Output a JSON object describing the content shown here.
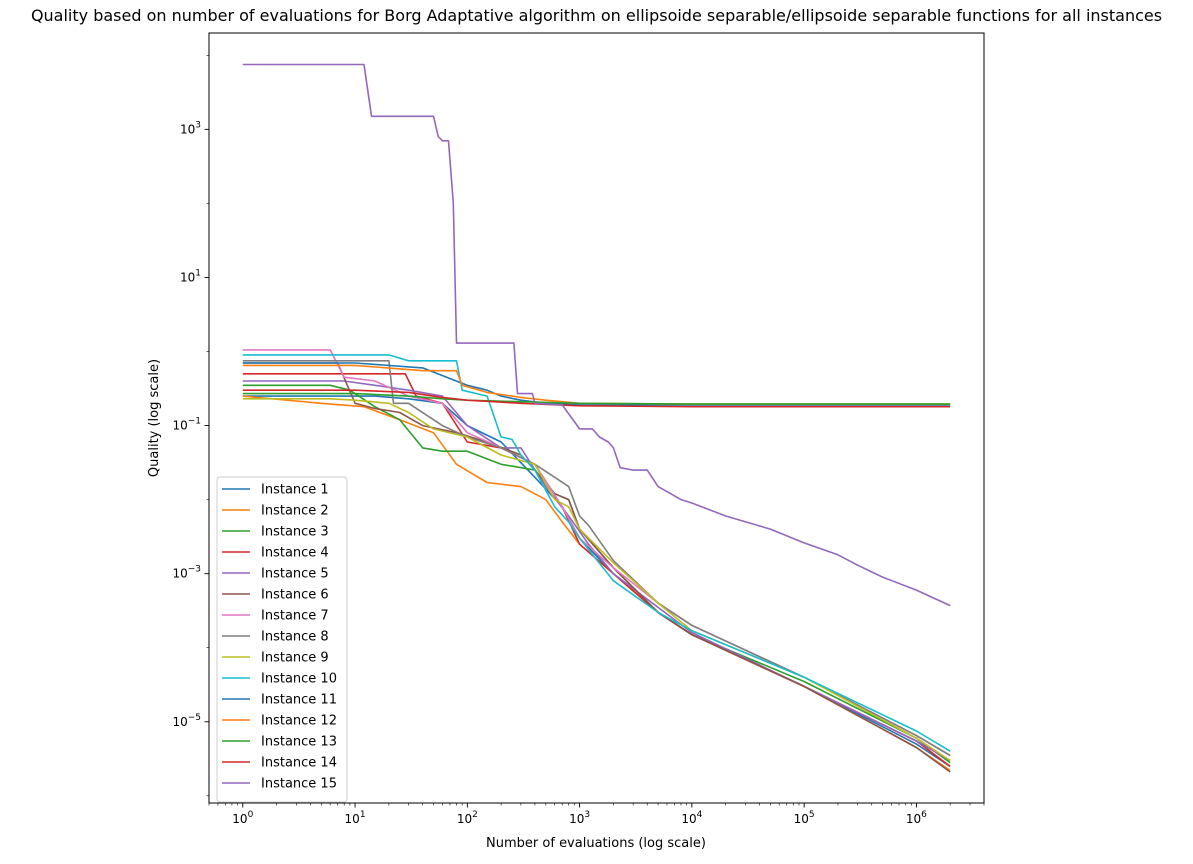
{
  "chart_data": {
    "type": "line",
    "title": "Quality based on number of evaluations for Borg Adaptative algorithm on ellipsoide separable/ellipsoide separable functions for all instances",
    "xlabel": "Number of evaluations (log scale)",
    "ylabel": "Quality (log scale)",
    "xscale": "log",
    "yscale": "log",
    "xlim": [
      0.5,
      4000000
    ],
    "ylim": [
      8e-07,
      20000
    ],
    "xticks": [
      {
        "value": 1,
        "base": "10",
        "exp": "0"
      },
      {
        "value": 10,
        "base": "10",
        "exp": "1"
      },
      {
        "value": 100,
        "base": "10",
        "exp": "2"
      },
      {
        "value": 1000,
        "base": "10",
        "exp": "3"
      },
      {
        "value": 10000,
        "base": "10",
        "exp": "4"
      },
      {
        "value": 100000,
        "base": "10",
        "exp": "5"
      },
      {
        "value": 1000000,
        "base": "10",
        "exp": "6"
      }
    ],
    "yticks": [
      {
        "value": 1e-05,
        "base": "10",
        "exp": "−5"
      },
      {
        "value": 0.001,
        "base": "10",
        "exp": "−3"
      },
      {
        "value": 0.1,
        "base": "10",
        "exp": "−1"
      },
      {
        "value": 10,
        "base": "10",
        "exp": "1"
      },
      {
        "value": 1000,
        "base": "10",
        "exp": "3"
      }
    ],
    "grid": false,
    "legend_position": "lower-left",
    "series": [
      {
        "name": "Instance 1",
        "color": "#1f77b4",
        "points": [
          [
            1,
            0.25
          ],
          [
            15,
            0.25
          ],
          [
            30,
            0.23
          ],
          [
            60,
            0.2
          ],
          [
            100,
            0.1
          ],
          [
            200,
            0.06
          ],
          [
            400,
            0.02
          ],
          [
            700,
            0.008
          ],
          [
            1000,
            0.003
          ],
          [
            2000,
            0.001
          ],
          [
            5000,
            0.0003
          ],
          [
            10000,
            0.00015
          ],
          [
            100000,
            3e-05
          ],
          [
            1000000,
            5e-06
          ],
          [
            2000000,
            2.5e-06
          ]
        ]
      },
      {
        "name": "Instance 2",
        "color": "#ff7f0e",
        "points": [
          [
            1,
            0.25
          ],
          [
            5,
            0.2
          ],
          [
            12,
            0.18
          ],
          [
            25,
            0.12
          ],
          [
            50,
            0.08
          ],
          [
            80,
            0.03
          ],
          [
            150,
            0.017
          ],
          [
            300,
            0.015
          ],
          [
            500,
            0.01
          ],
          [
            700,
            0.005
          ],
          [
            1000,
            0.0025
          ],
          [
            2000,
            0.001
          ],
          [
            5000,
            0.0003
          ],
          [
            10000,
            0.00015
          ],
          [
            100000,
            3e-05
          ],
          [
            1000000,
            4.5e-06
          ],
          [
            2000000,
            2.2e-06
          ]
        ]
      },
      {
        "name": "Instance 3",
        "color": "#2ca02c",
        "points": [
          [
            1,
            0.35
          ],
          [
            6,
            0.35
          ],
          [
            9,
            0.3
          ],
          [
            15,
            0.18
          ],
          [
            25,
            0.12
          ],
          [
            40,
            0.05
          ],
          [
            60,
            0.045
          ],
          [
            100,
            0.045
          ],
          [
            200,
            0.03
          ],
          [
            400,
            0.025
          ],
          [
            600,
            0.012
          ],
          [
            800,
            0.01
          ],
          [
            1000,
            0.004
          ],
          [
            2000,
            0.0012
          ],
          [
            5000,
            0.0003
          ],
          [
            10000,
            0.00015
          ],
          [
            100000,
            3.5e-05
          ],
          [
            1000000,
            6e-06
          ],
          [
            2000000,
            2.8e-06
          ]
        ]
      },
      {
        "name": "Instance 4",
        "color": "#d62728",
        "points": [
          [
            1,
            0.5
          ],
          [
            8,
            0.5
          ],
          [
            12,
            0.5
          ],
          [
            28,
            0.5
          ],
          [
            35,
            0.25
          ],
          [
            60,
            0.2
          ],
          [
            100,
            0.06
          ],
          [
            200,
            0.05
          ],
          [
            400,
            0.03
          ],
          [
            700,
            0.008
          ],
          [
            1000,
            0.0025
          ],
          [
            2000,
            0.001
          ],
          [
            5000,
            0.0003
          ],
          [
            10000,
            0.00015
          ],
          [
            100000,
            3e-05
          ],
          [
            1000000,
            5.5e-06
          ],
          [
            2000000,
            2.5e-06
          ]
        ]
      },
      {
        "name": "Instance 5",
        "color": "#9467bd",
        "points": [
          [
            1,
            0.4
          ],
          [
            8,
            0.4
          ],
          [
            15,
            0.35
          ],
          [
            30,
            0.3
          ],
          [
            60,
            0.25
          ],
          [
            100,
            0.1
          ],
          [
            200,
            0.05
          ],
          [
            300,
            0.05
          ],
          [
            500,
            0.015
          ],
          [
            800,
            0.006
          ],
          [
            1200,
            0.0025
          ],
          [
            2000,
            0.001
          ],
          [
            5000,
            0.00035
          ],
          [
            10000,
            0.00016
          ],
          [
            100000,
            3e-05
          ],
          [
            1000000,
            5.5e-06
          ],
          [
            2000000,
            3e-06
          ]
        ]
      },
      {
        "name": "Instance 6",
        "color": "#8c564b",
        "points": [
          [
            1,
            0.7
          ],
          [
            7,
            0.7
          ],
          [
            10,
            0.2
          ],
          [
            15,
            0.17
          ],
          [
            25,
            0.15
          ],
          [
            40,
            0.1
          ],
          [
            80,
            0.08
          ],
          [
            150,
            0.06
          ],
          [
            300,
            0.04
          ],
          [
            400,
            0.025
          ],
          [
            600,
            0.012
          ],
          [
            800,
            0.01
          ],
          [
            1000,
            0.004
          ],
          [
            2000,
            0.0012
          ],
          [
            5000,
            0.0003
          ],
          [
            10000,
            0.00015
          ],
          [
            100000,
            3e-05
          ],
          [
            1000000,
            4.5e-06
          ],
          [
            2000000,
            2.1e-06
          ]
        ]
      },
      {
        "name": "Instance 7",
        "color": "#e377c2",
        "points": [
          [
            1,
            1.05
          ],
          [
            6,
            1.05
          ],
          [
            8,
            0.45
          ],
          [
            15,
            0.4
          ],
          [
            30,
            0.25
          ],
          [
            60,
            0.2
          ],
          [
            100,
            0.08
          ],
          [
            200,
            0.05
          ],
          [
            400,
            0.03
          ],
          [
            700,
            0.008
          ],
          [
            1000,
            0.003
          ],
          [
            2000,
            0.0012
          ],
          [
            5000,
            0.0004
          ],
          [
            10000,
            0.0002
          ],
          [
            100000,
            4e-05
          ],
          [
            1000000,
            6.5e-06
          ],
          [
            2000000,
            3.5e-06
          ]
        ]
      },
      {
        "name": "Instance 8",
        "color": "#7f7f7f",
        "points": [
          [
            1,
            0.75
          ],
          [
            6,
            0.75
          ],
          [
            10,
            0.75
          ],
          [
            20,
            0.75
          ],
          [
            22,
            0.2
          ],
          [
            30,
            0.2
          ],
          [
            60,
            0.1
          ],
          [
            100,
            0.07
          ],
          [
            200,
            0.05
          ],
          [
            400,
            0.03
          ],
          [
            600,
            0.02
          ],
          [
            800,
            0.015
          ],
          [
            1000,
            0.006
          ],
          [
            1200,
            0.0045
          ],
          [
            2000,
            0.0015
          ],
          [
            5000,
            0.0004
          ],
          [
            10000,
            0.0002
          ],
          [
            100000,
            4e-05
          ],
          [
            1000000,
            6.5e-06
          ],
          [
            2000000,
            3.5e-06
          ]
        ]
      },
      {
        "name": "Instance 9",
        "color": "#bcbd22",
        "points": [
          [
            1,
            0.23
          ],
          [
            6,
            0.23
          ],
          [
            10,
            0.22
          ],
          [
            20,
            0.2
          ],
          [
            30,
            0.15
          ],
          [
            50,
            0.09
          ],
          [
            100,
            0.07
          ],
          [
            200,
            0.04
          ],
          [
            400,
            0.03
          ],
          [
            600,
            0.01
          ],
          [
            800,
            0.008
          ],
          [
            1000,
            0.004
          ],
          [
            2000,
            0.0014
          ],
          [
            5000,
            0.0004
          ],
          [
            10000,
            0.00017
          ],
          [
            100000,
            4e-05
          ],
          [
            1000000,
            6e-06
          ],
          [
            2000000,
            3e-06
          ]
        ]
      },
      {
        "name": "Instance 10",
        "color": "#17becf",
        "points": [
          [
            1,
            0.9
          ],
          [
            10,
            0.9
          ],
          [
            20,
            0.9
          ],
          [
            30,
            0.75
          ],
          [
            80,
            0.75
          ],
          [
            90,
            0.3
          ],
          [
            150,
            0.25
          ],
          [
            200,
            0.07
          ],
          [
            250,
            0.065
          ],
          [
            300,
            0.04
          ],
          [
            400,
            0.025
          ],
          [
            600,
            0.008
          ],
          [
            800,
            0.005
          ],
          [
            1000,
            0.003
          ],
          [
            2000,
            0.0008
          ],
          [
            5000,
            0.0003
          ],
          [
            10000,
            0.00017
          ],
          [
            100000,
            4e-05
          ],
          [
            1000000,
            7.5e-06
          ],
          [
            2000000,
            4e-06
          ]
        ]
      },
      {
        "name": "Instance 11",
        "color": "#1f77b4",
        "points": [
          [
            1,
            0.7
          ],
          [
            10,
            0.7
          ],
          [
            40,
            0.6
          ],
          [
            100,
            0.35
          ],
          [
            150,
            0.3
          ],
          [
            200,
            0.25
          ],
          [
            300,
            0.22
          ],
          [
            500,
            0.2
          ],
          [
            1000,
            0.19
          ],
          [
            10000,
            0.19
          ],
          [
            100000,
            0.19
          ],
          [
            2000000,
            0.19
          ]
        ]
      },
      {
        "name": "Instance 12",
        "color": "#ff7f0e",
        "points": [
          [
            1,
            0.65
          ],
          [
            10,
            0.65
          ],
          [
            40,
            0.55
          ],
          [
            80,
            0.55
          ],
          [
            90,
            0.35
          ],
          [
            150,
            0.28
          ],
          [
            300,
            0.24
          ],
          [
            500,
            0.22
          ],
          [
            1000,
            0.2
          ],
          [
            10000,
            0.195
          ],
          [
            100000,
            0.195
          ],
          [
            2000000,
            0.195
          ]
        ]
      },
      {
        "name": "Instance 13",
        "color": "#2ca02c",
        "points": [
          [
            1,
            0.27
          ],
          [
            10,
            0.27
          ],
          [
            30,
            0.25
          ],
          [
            60,
            0.23
          ],
          [
            100,
            0.22
          ],
          [
            300,
            0.21
          ],
          [
            1000,
            0.2
          ],
          [
            10000,
            0.195
          ],
          [
            100000,
            0.195
          ],
          [
            2000000,
            0.195
          ]
        ]
      },
      {
        "name": "Instance 14",
        "color": "#d62728",
        "points": [
          [
            1,
            0.3
          ],
          [
            10,
            0.3
          ],
          [
            30,
            0.28
          ],
          [
            60,
            0.24
          ],
          [
            100,
            0.22
          ],
          [
            300,
            0.2
          ],
          [
            1000,
            0.185
          ],
          [
            10000,
            0.18
          ],
          [
            100000,
            0.18
          ],
          [
            2000000,
            0.18
          ]
        ]
      },
      {
        "name": "Instance 15",
        "color": "#9467bd",
        "points": [
          [
            1,
            7500
          ],
          [
            12,
            7500
          ],
          [
            14,
            1500
          ],
          [
            50,
            1500
          ],
          [
            55,
            800
          ],
          [
            60,
            700
          ],
          [
            68,
            700
          ],
          [
            75,
            100
          ],
          [
            80,
            1.3
          ],
          [
            260,
            1.3
          ],
          [
            280,
            0.27
          ],
          [
            380,
            0.27
          ],
          [
            400,
            0.2
          ],
          [
            700,
            0.19
          ],
          [
            1000,
            0.09
          ],
          [
            1300,
            0.09
          ],
          [
            1500,
            0.07
          ],
          [
            1800,
            0.06
          ],
          [
            2000,
            0.05
          ],
          [
            2300,
            0.027
          ],
          [
            3000,
            0.025
          ],
          [
            4000,
            0.025
          ],
          [
            5000,
            0.015
          ],
          [
            8000,
            0.01
          ],
          [
            10000,
            0.009
          ],
          [
            20000,
            0.006
          ],
          [
            50000,
            0.004
          ],
          [
            100000,
            0.0026
          ],
          [
            200000,
            0.0018
          ],
          [
            300000,
            0.0013
          ],
          [
            500000,
            0.0009
          ],
          [
            1000000,
            0.0006
          ],
          [
            2000000,
            0.00037
          ]
        ]
      }
    ]
  }
}
